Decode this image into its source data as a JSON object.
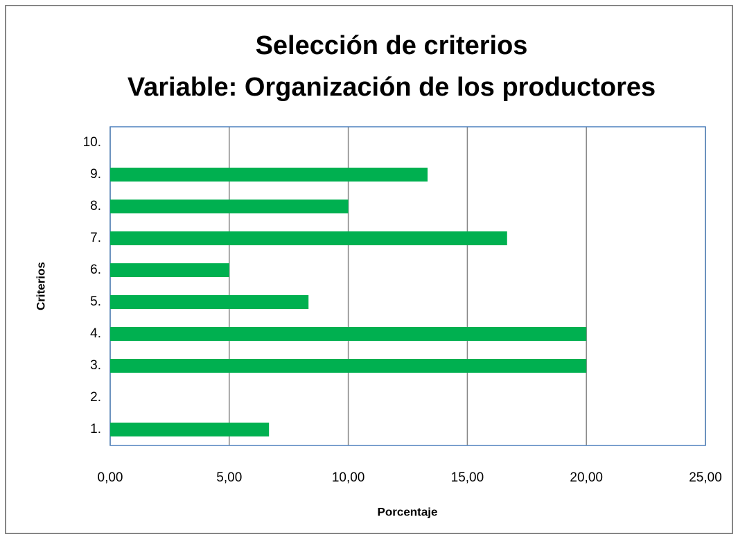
{
  "chart_data": {
    "type": "bar",
    "orientation": "horizontal",
    "title": "Selección de criterios",
    "subtitle": "Variable: Organización de los productores",
    "x_label": "Porcentaje",
    "y_label": "Criterios",
    "categories": [
      "1.",
      "2.",
      "3.",
      "4.",
      "5.",
      "6.",
      "7.",
      "8.",
      "9.",
      "10."
    ],
    "values": [
      6.67,
      0,
      20,
      20,
      8.33,
      5,
      16.67,
      10,
      13.33,
      0
    ],
    "color": "#00b050",
    "xlim": [
      0,
      25
    ],
    "xticks": [
      {
        "value": 0,
        "label": "0,00"
      },
      {
        "value": 5,
        "label": "5,00"
      },
      {
        "value": 10,
        "label": "10,00"
      },
      {
        "value": 15,
        "label": "15,00"
      },
      {
        "value": 20,
        "label": "20,00"
      },
      {
        "value": 25,
        "label": "25,00"
      }
    ],
    "grid": true
  }
}
